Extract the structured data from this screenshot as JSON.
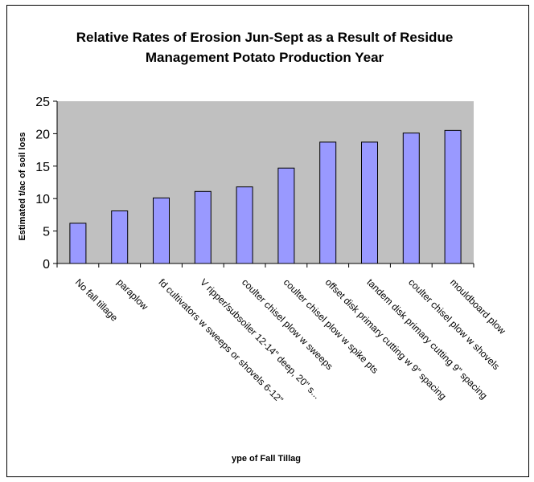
{
  "chart_data": {
    "type": "bar",
    "title_lines": [
      "Relative Rates of Erosion Jun-Sept as a Result of Residue",
      "Management Potato Production Year"
    ],
    "ylabel": "Estimated t/ac of soil loss",
    "xlabel": "ype of Fall Tillag",
    "ylim": [
      0,
      25
    ],
    "yticks": [
      0,
      5,
      10,
      15,
      20,
      25
    ],
    "grid": false,
    "legend": "none",
    "plot_area_color": "#c0c0c0",
    "bar_color": "#9999ff",
    "categories": [
      "No fall tillage",
      "paraplow",
      "fd cultivators w sweeps or shovels 6-12\"",
      "V ripper/subsoiler 12-14\" deep, 20\" s...",
      "coulter chisel plow w sweeps",
      "coulter chisel plow w spike pts",
      "offset disk primary cutting w 9\" spacing",
      "tandem disk primary cutting 9\" spacing",
      "coulter chisel plow w shovels",
      "mouldboard plow"
    ],
    "values": [
      6.2,
      8.1,
      10.1,
      11.1,
      11.8,
      14.7,
      18.7,
      18.7,
      20.1,
      20.5
    ]
  }
}
